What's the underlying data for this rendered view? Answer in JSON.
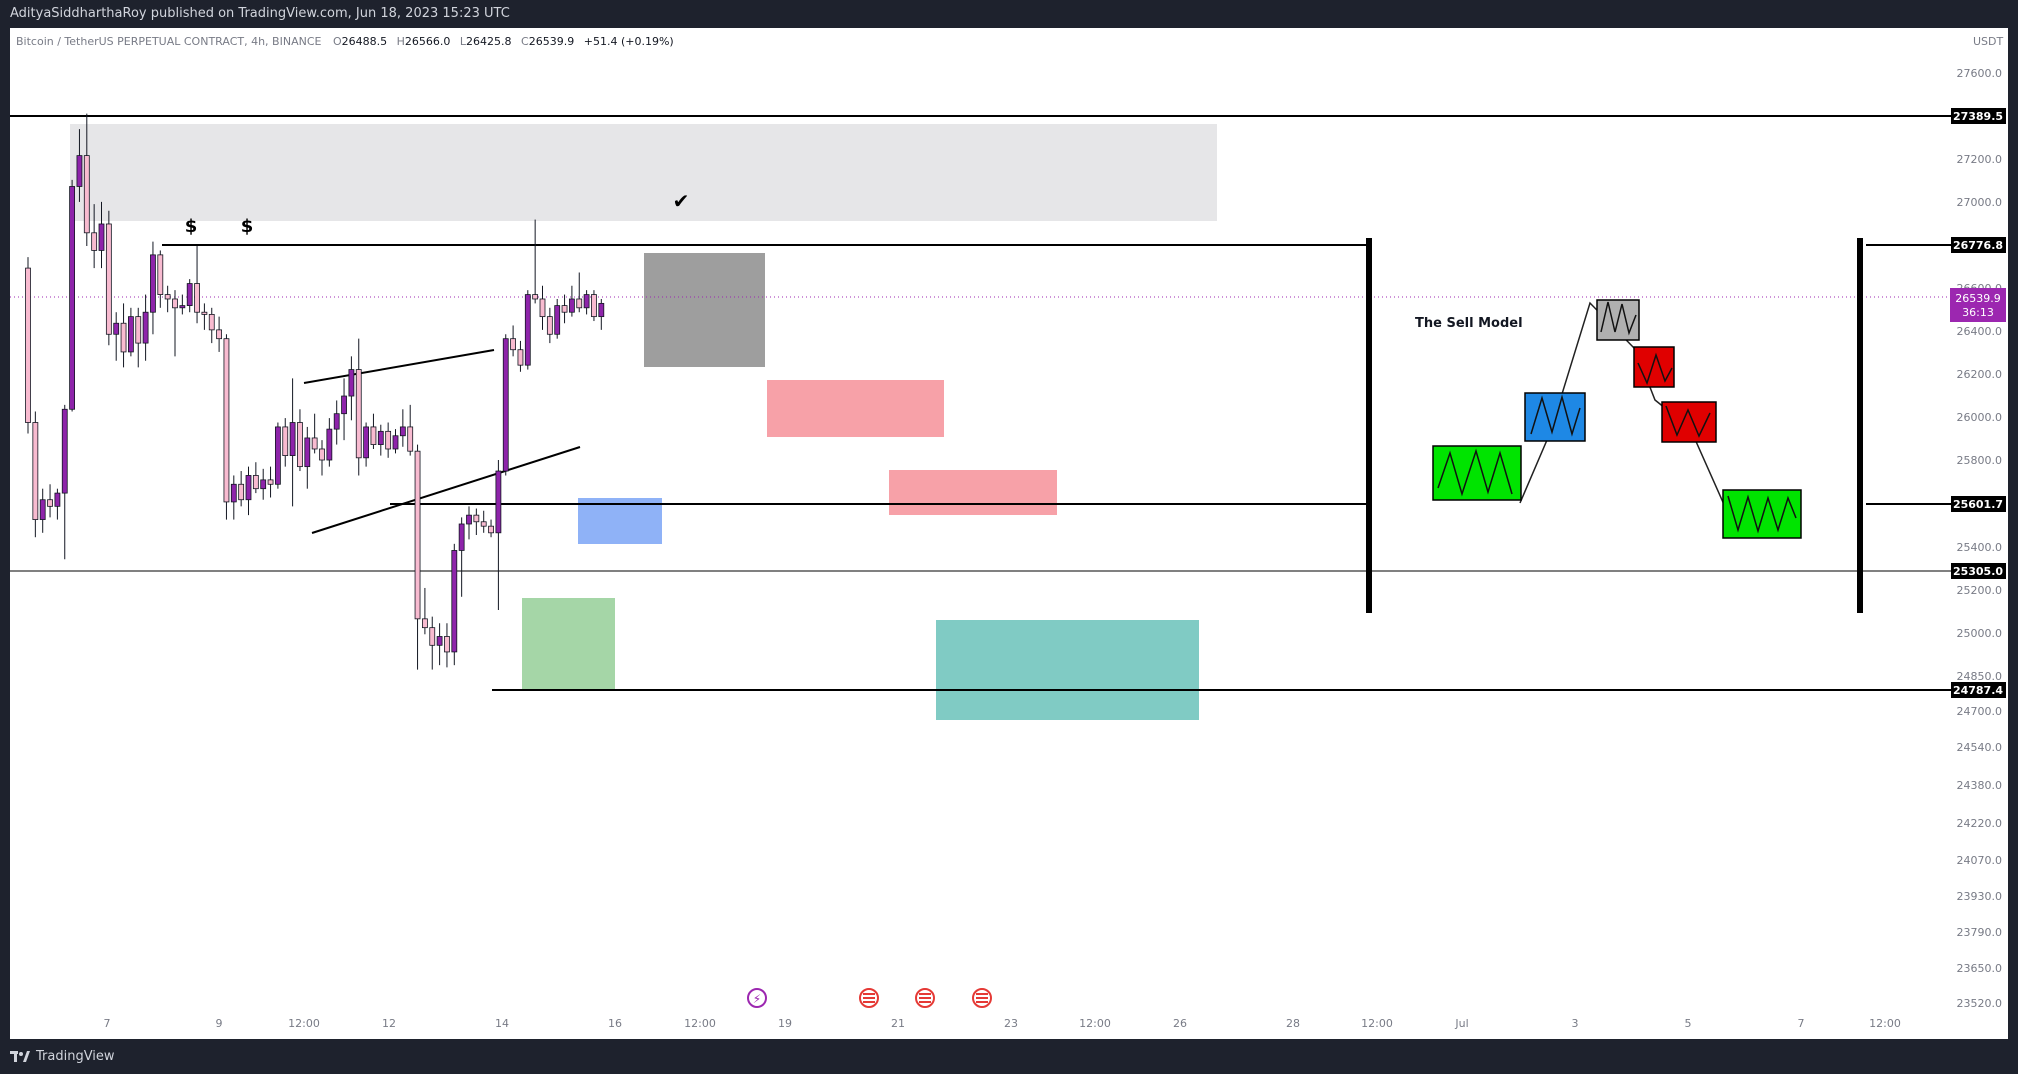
{
  "header": {
    "publisher_line": "AdityaSiddharthaRoy published on TradingView.com, Jun 18, 2023 15:23 UTC"
  },
  "symbol": {
    "name": "Bitcoin / TetherUS PERPETUAL CONTRACT, 4h, BINANCE",
    "o_label": "O",
    "o_value": "26488.5",
    "h_label": "H",
    "h_value": "26566.0",
    "l_label": "L",
    "l_value": "26425.8",
    "c_label": "C",
    "c_value": "26539.9",
    "change": "+51.4 (+0.19%)",
    "currency": "USDT"
  },
  "footer": {
    "brand": "TradingView",
    "brand_icon": "tradingview-logo-icon"
  },
  "colors": {
    "bull": "#8e24aa",
    "bear": "#f8bbd0",
    "resistance_zone": "#e6e6e8",
    "consolidation_zone": "#9e9e9e",
    "supply_zone": "#f7a1a8",
    "demand_zone": "#80cbc4",
    "order_block_blue": "#8fb2f7",
    "accumulation_green": "#a5d6a7",
    "model_green": "#00e400",
    "model_blue": "#1e88e5",
    "model_gray": "#b0b0b0",
    "model_red": "#e00000",
    "last_price_bg": "#9c27b0"
  },
  "chart_data": {
    "type": "candlestick",
    "timeframe": "4h",
    "currency": "USDT",
    "y_ticks": [
      27600.0,
      27400.0,
      27200.0,
      27000.0,
      26800.0,
      26600.0,
      26400.0,
      26200.0,
      26000.0,
      25800.0,
      25600.0,
      25400.0,
      25200.0,
      25000.0,
      24850.0,
      24700.0,
      24540.0,
      24380.0,
      24220.0,
      24070.0,
      23930.0,
      23790.0,
      23650.0,
      23520.0
    ],
    "x_ticks": [
      "7",
      "9",
      "12:00",
      "12",
      "14",
      "16",
      "12:00",
      "19",
      "21",
      "23",
      "12:00",
      "26",
      "28",
      "12:00",
      "Jul",
      "3",
      "5",
      "7",
      "12:00"
    ],
    "level_labels": [
      "27389.5",
      "26776.8",
      "25601.7",
      "25305.0",
      "24787.4"
    ],
    "last_price": {
      "value": "26539.9",
      "countdown": "36:13"
    },
    "candles": [
      [
        26700,
        26750,
        25950,
        26000
      ],
      [
        26000,
        26050,
        25480,
        25560
      ],
      [
        25560,
        25700,
        25500,
        25650
      ],
      [
        25650,
        25720,
        25570,
        25620
      ],
      [
        25620,
        25700,
        25560,
        25680
      ],
      [
        25680,
        26080,
        25380,
        26060
      ],
      [
        26060,
        27100,
        26050,
        27070
      ],
      [
        27070,
        27330,
        27000,
        27210
      ],
      [
        27210,
        27400,
        26800,
        26860
      ],
      [
        26860,
        26990,
        26700,
        26780
      ],
      [
        26780,
        27000,
        26700,
        26900
      ],
      [
        26900,
        26960,
        26350,
        26400
      ],
      [
        26400,
        26500,
        26280,
        26450
      ],
      [
        26450,
        26540,
        26250,
        26320
      ],
      [
        26320,
        26520,
        26300,
        26480
      ],
      [
        26480,
        26520,
        26250,
        26360
      ],
      [
        26360,
        26580,
        26280,
        26500
      ],
      [
        26500,
        26820,
        26400,
        26760
      ],
      [
        26760,
        26780,
        26520,
        26580
      ],
      [
        26580,
        26620,
        26500,
        26560
      ],
      [
        26560,
        26600,
        26300,
        26520
      ],
      [
        26520,
        26580,
        26490,
        26530
      ],
      [
        26530,
        26650,
        26500,
        26630
      ],
      [
        26630,
        26800,
        26450,
        26500
      ],
      [
        26500,
        26540,
        26420,
        26490
      ],
      [
        26490,
        26520,
        26360,
        26420
      ],
      [
        26420,
        26480,
        26320,
        26380
      ],
      [
        26380,
        26400,
        25560,
        25640
      ],
      [
        25640,
        25760,
        25560,
        25720
      ],
      [
        25720,
        25780,
        25620,
        25650
      ],
      [
        25650,
        25800,
        25580,
        25760
      ],
      [
        25760,
        25820,
        25680,
        25700
      ],
      [
        25700,
        25790,
        25650,
        25740
      ],
      [
        25740,
        25800,
        25660,
        25720
      ],
      [
        25720,
        26000,
        25700,
        25980
      ],
      [
        25980,
        26020,
        25800,
        25850
      ],
      [
        25850,
        26200,
        25620,
        26000
      ],
      [
        26000,
        26060,
        25780,
        25800
      ],
      [
        25800,
        25980,
        25700,
        25930
      ],
      [
        25930,
        26040,
        25860,
        25880
      ],
      [
        25880,
        25920,
        25760,
        25830
      ],
      [
        25830,
        26020,
        25800,
        25970
      ],
      [
        25970,
        26100,
        25900,
        26040
      ],
      [
        26040,
        26200,
        25920,
        26120
      ],
      [
        26120,
        26300,
        26010,
        26240
      ],
      [
        26240,
        26380,
        25760,
        25840
      ],
      [
        25840,
        26000,
        25800,
        25980
      ],
      [
        25980,
        26040,
        25880,
        25900
      ],
      [
        25900,
        25990,
        25850,
        25960
      ],
      [
        25960,
        26000,
        25840,
        25880
      ],
      [
        25880,
        25970,
        25860,
        25940
      ],
      [
        25940,
        26060,
        25890,
        25980
      ],
      [
        25980,
        26080,
        25850,
        25870
      ],
      [
        25870,
        25900,
        24880,
        25110
      ],
      [
        25110,
        25250,
        25040,
        25070
      ],
      [
        25070,
        25120,
        24880,
        24990
      ],
      [
        24990,
        25090,
        24900,
        25030
      ],
      [
        25030,
        25090,
        24890,
        24960
      ],
      [
        24960,
        25450,
        24900,
        25420
      ],
      [
        25420,
        25570,
        25210,
        25540
      ],
      [
        25540,
        25620,
        25470,
        25580
      ],
      [
        25580,
        25610,
        25490,
        25550
      ],
      [
        25550,
        25600,
        25500,
        25530
      ],
      [
        25530,
        25560,
        25480,
        25500
      ],
      [
        25500,
        25830,
        25150,
        25780
      ],
      [
        25780,
        26400,
        25760,
        26380
      ],
      [
        26380,
        26440,
        26300,
        26330
      ],
      [
        26330,
        26370,
        26230,
        26260
      ],
      [
        26260,
        26600,
        26240,
        26580
      ],
      [
        26580,
        26920,
        26540,
        26560
      ],
      [
        26560,
        26620,
        26420,
        26480
      ],
      [
        26480,
        26520,
        26360,
        26400
      ],
      [
        26400,
        26560,
        26380,
        26530
      ],
      [
        26530,
        26580,
        26450,
        26500
      ],
      [
        26500,
        26620,
        26480,
        26560
      ],
      [
        26560,
        26680,
        26500,
        26520
      ],
      [
        26520,
        26600,
        26490,
        26580
      ],
      [
        26580,
        26600,
        26460,
        26480
      ],
      [
        26480,
        26560,
        26420,
        26540
      ]
    ]
  },
  "annotations": {
    "liquidity_symbol": "$",
    "check_symbol": "✔",
    "model_title": "The Sell Model",
    "event_icons": [
      "dividend-flash-icon",
      "us-flag-icon",
      "us-flag-icon",
      "us-flag-icon"
    ]
  }
}
